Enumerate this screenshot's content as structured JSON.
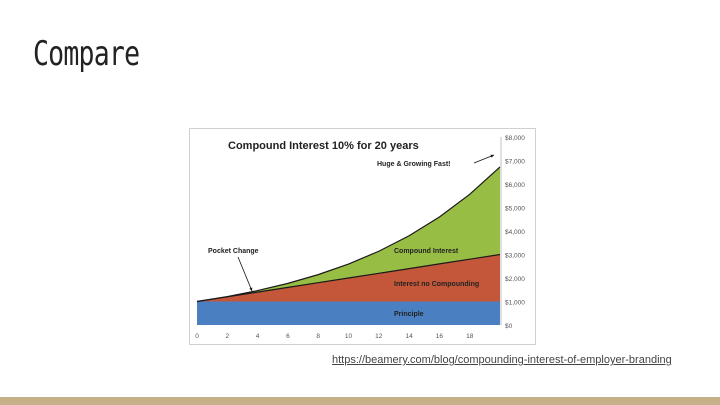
{
  "slide": {
    "title": "Compare",
    "source_link": "https://beamery.com/blog/compounding-interest-of-employer-branding"
  },
  "colors": {
    "principle": "#4a7fc1",
    "no_compounding": "#c4573a",
    "compound": "#98bd45",
    "footer": "#c6b08a"
  },
  "chart_data": {
    "type": "area",
    "title": "Compound Interest 10% for 20 years",
    "x": [
      0,
      2,
      4,
      6,
      8,
      10,
      12,
      14,
      16,
      18,
      20
    ],
    "x_ticks": [
      0,
      2,
      4,
      6,
      8,
      10,
      12,
      14,
      16,
      18
    ],
    "xlim": [
      0,
      20
    ],
    "ylim": [
      0,
      8000
    ],
    "y_ticks": [
      "$0",
      "$1,000",
      "$2,000",
      "$3,000",
      "$4,000",
      "$5,000",
      "$6,000",
      "$7,000",
      "$8,000"
    ],
    "y_tick_values": [
      0,
      1000,
      2000,
      3000,
      4000,
      5000,
      6000,
      7000,
      8000
    ],
    "series": [
      {
        "name": "Principle",
        "values": [
          1000,
          1000,
          1000,
          1000,
          1000,
          1000,
          1000,
          1000,
          1000,
          1000,
          1000
        ]
      },
      {
        "name": "Interest no Compounding",
        "values": [
          1000,
          1200,
          1400,
          1600,
          1800,
          2000,
          2200,
          2400,
          2600,
          2800,
          3000
        ]
      },
      {
        "name": "Compound Interest",
        "values": [
          1000,
          1210,
          1464,
          1772,
          2144,
          2594,
          3138,
          3797,
          4595,
          5560,
          6727
        ]
      }
    ],
    "annotations": [
      "Huge & Growing Fast!",
      "Pocket Change"
    ],
    "grid": false
  }
}
